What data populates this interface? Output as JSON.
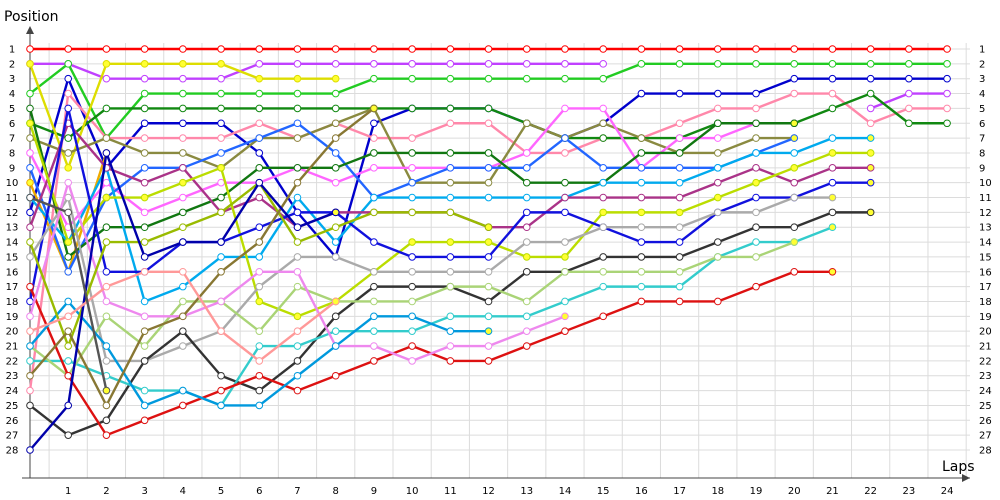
{
  "chart_data": {
    "type": "line",
    "title": "",
    "ylabel": "Position",
    "xlabel": "Laps",
    "x_ticks": [
      1,
      2,
      3,
      4,
      5,
      6,
      7,
      8,
      9,
      10,
      11,
      12,
      13,
      14,
      15,
      16,
      17,
      18,
      19,
      20,
      21,
      22,
      23,
      24
    ],
    "y_ticks": [
      1,
      2,
      3,
      4,
      5,
      6,
      7,
      8,
      9,
      10,
      11,
      12,
      13,
      14,
      15,
      16,
      17,
      18,
      19,
      20,
      21,
      22,
      23,
      24,
      25,
      26,
      27,
      28
    ],
    "xlim": [
      0,
      24.6
    ],
    "ylim": [
      1,
      28
    ],
    "y_inverted": true,
    "grid": true,
    "series": [
      {
        "color": "#ff0000",
        "values": [
          1,
          1,
          1,
          1,
          1,
          1,
          1,
          1,
          1,
          1,
          1,
          1,
          1,
          1,
          1,
          1,
          1,
          1,
          1,
          1,
          1,
          1,
          1,
          1,
          1
        ]
      },
      {
        "color": "#c040ff",
        "values": [
          2,
          2,
          3,
          3,
          3,
          3,
          2,
          2,
          2,
          2,
          2,
          2,
          2,
          2,
          2,
          2,
          null,
          null,
          null,
          null,
          null,
          null,
          5,
          4,
          4
        ]
      },
      {
        "color": "#22cc22",
        "values": [
          4,
          2,
          7,
          4,
          4,
          4,
          4,
          4,
          4,
          3,
          3,
          3,
          3,
          3,
          3,
          3,
          2,
          2,
          2,
          2,
          2,
          2,
          2,
          2,
          2
        ]
      },
      {
        "color": "#0000cc",
        "values": [
          12,
          3,
          9,
          6,
          6,
          6,
          8,
          12,
          15,
          6,
          5,
          5,
          5,
          6,
          7,
          6,
          4,
          4,
          4,
          4,
          3,
          3,
          3,
          3,
          3
        ]
      },
      {
        "color": "#ff88aa",
        "values": [
          24,
          4,
          7,
          7,
          7,
          7,
          6,
          7,
          6,
          7,
          7,
          6,
          6,
          8,
          8,
          7,
          7,
          6,
          5,
          5,
          4,
          4,
          6,
          5,
          5
        ]
      },
      {
        "color": "#118811",
        "values": [
          6,
          7,
          5,
          5,
          5,
          5,
          5,
          5,
          5,
          5,
          5,
          5,
          5,
          6,
          7,
          7,
          7,
          7,
          6,
          6,
          6,
          5,
          4,
          6,
          6
        ]
      },
      {
        "color": "#dddd00",
        "values": [
          2,
          9,
          2,
          2,
          2,
          2,
          3,
          3,
          3,
          null,
          null,
          null,
          null,
          null,
          null,
          null,
          null,
          null,
          null,
          null,
          null,
          null,
          null,
          null,
          null
        ]
      },
      {
        "color": "#8a8a40",
        "values": [
          7,
          8,
          7,
          8,
          8,
          9,
          7,
          7,
          6,
          5,
          10,
          10,
          10,
          6,
          7,
          6,
          7,
          8,
          8,
          7,
          7,
          null,
          null,
          null,
          null
        ]
      },
      {
        "color": "#eeaa00",
        "values": [
          10,
          16,
          8,
          null,
          null,
          null,
          null,
          null,
          null,
          null,
          null,
          null,
          null,
          null,
          null,
          null,
          null,
          null,
          null,
          null,
          null,
          null,
          null,
          null,
          null
        ]
      },
      {
        "color": "#ff66ff",
        "values": [
          8,
          13,
          10,
          12,
          11,
          10,
          10,
          9,
          10,
          9,
          9,
          9,
          9,
          8,
          5,
          5,
          9,
          7,
          7,
          6,
          6,
          null,
          null,
          null,
          null
        ]
      },
      {
        "color": "#2266ff",
        "values": [
          9,
          16,
          11,
          9,
          9,
          8,
          7,
          6,
          8,
          11,
          10,
          9,
          9,
          9,
          7,
          9,
          9,
          9,
          9,
          8,
          7,
          null,
          null,
          null,
          null
        ]
      },
      {
        "color": "#117711",
        "values": [
          5,
          15,
          13,
          13,
          12,
          11,
          9,
          9,
          9,
          8,
          8,
          8,
          8,
          10,
          10,
          10,
          8,
          8,
          6,
          6,
          6,
          null,
          null,
          null,
          null
        ]
      },
      {
        "color": "#00aaee",
        "values": [
          11,
          14,
          9,
          18,
          17,
          15,
          15,
          11,
          14,
          11,
          11,
          11,
          11,
          11,
          11,
          10,
          10,
          10,
          9,
          8,
          8,
          7,
          7,
          null,
          null
        ]
      },
      {
        "color": "#aa3388",
        "values": [
          13,
          6,
          9,
          10,
          9,
          12,
          11,
          13,
          12,
          12,
          12,
          12,
          13,
          13,
          11,
          11,
          11,
          11,
          10,
          9,
          10,
          9,
          9,
          null,
          null
        ]
      },
      {
        "color": "#bbdd00",
        "values": [
          6,
          14,
          11,
          11,
          10,
          9,
          18,
          19,
          18,
          16,
          14,
          14,
          14,
          15,
          15,
          12,
          12,
          12,
          11,
          10,
          9,
          8,
          8,
          null,
          null
        ]
      },
      {
        "color": "#1111dd",
        "values": [
          18,
          5,
          16,
          16,
          14,
          14,
          13,
          12,
          12,
          14,
          15,
          15,
          15,
          12,
          12,
          13,
          14,
          14,
          12,
          11,
          11,
          10,
          10,
          null,
          null
        ]
      },
      {
        "color": "#aaaaaa",
        "values": [
          15,
          11,
          22,
          22,
          21,
          20,
          17,
          15,
          15,
          16,
          16,
          16,
          16,
          14,
          14,
          13,
          13,
          13,
          12,
          12,
          11,
          11,
          null,
          null,
          null
        ]
      },
      {
        "color": "#333333",
        "values": [
          25,
          27,
          26,
          22,
          20,
          23,
          24,
          22,
          19,
          17,
          17,
          17,
          18,
          16,
          16,
          15,
          15,
          15,
          14,
          13,
          13,
          12,
          12,
          null,
          null
        ]
      },
      {
        "color": "#33cccc",
        "values": [
          22,
          22,
          23,
          24,
          24,
          25,
          21,
          21,
          20,
          20,
          20,
          19,
          19,
          19,
          18,
          17,
          17,
          17,
          15,
          14,
          14,
          13,
          null,
          null,
          null
        ]
      },
      {
        "color": "#aad477",
        "values": [
          21,
          23,
          19,
          21,
          18,
          18,
          20,
          17,
          18,
          18,
          18,
          17,
          17,
          18,
          16,
          16,
          16,
          16,
          15,
          15,
          14,
          null,
          null,
          null,
          null
        ]
      },
      {
        "color": "#dd1111",
        "values": [
          17,
          23,
          27,
          26,
          25,
          24,
          23,
          24,
          23,
          22,
          21,
          22,
          22,
          21,
          20,
          19,
          18,
          18,
          18,
          17,
          16,
          16,
          null,
          null,
          null
        ]
      },
      {
        "color": "#ee88ee",
        "values": [
          19,
          10,
          18,
          19,
          19,
          18,
          16,
          16,
          21,
          21,
          22,
          21,
          21,
          20,
          19,
          null,
          null,
          null,
          null,
          null,
          null,
          null,
          null,
          null,
          null
        ]
      },
      {
        "color": "#0099dd",
        "values": [
          21,
          18,
          21,
          25,
          24,
          25,
          25,
          23,
          21,
          19,
          19,
          20,
          20,
          null,
          null,
          null,
          null,
          null,
          null,
          null,
          null,
          null,
          null,
          null,
          null
        ]
      },
      {
        "color": "#99bb00",
        "values": [
          14,
          21,
          14,
          14,
          13,
          12,
          10,
          14,
          13,
          12,
          12,
          12,
          13,
          null,
          null,
          null,
          null,
          null,
          null,
          null,
          null,
          null,
          null,
          null,
          null
        ]
      },
      {
        "color": "#887733",
        "values": [
          23,
          20,
          25,
          20,
          19,
          16,
          14,
          10,
          7,
          5,
          null,
          null,
          null,
          null,
          null,
          null,
          null,
          null,
          null,
          null,
          null,
          null,
          null,
          null,
          null
        ]
      },
      {
        "color": "#0000aa",
        "values": [
          28,
          25,
          8,
          15,
          14,
          14,
          10,
          13,
          12,
          null,
          null,
          null,
          null,
          null,
          null,
          null,
          null,
          null,
          null,
          null,
          null,
          null,
          null,
          null,
          null
        ]
      },
      {
        "color": "#ff9999",
        "values": [
          20,
          19,
          17,
          16,
          16,
          20,
          22,
          20,
          18,
          null,
          null,
          null,
          null,
          null,
          null,
          null,
          null,
          null,
          null,
          null,
          null,
          null,
          null,
          null,
          null
        ]
      },
      {
        "color": "#555555",
        "values": [
          11,
          12,
          24,
          null,
          null,
          null,
          null,
          null,
          null,
          null,
          null,
          null,
          null,
          null,
          null,
          null,
          null,
          null,
          null,
          null,
          null,
          null,
          null,
          null,
          null
        ]
      }
    ]
  }
}
